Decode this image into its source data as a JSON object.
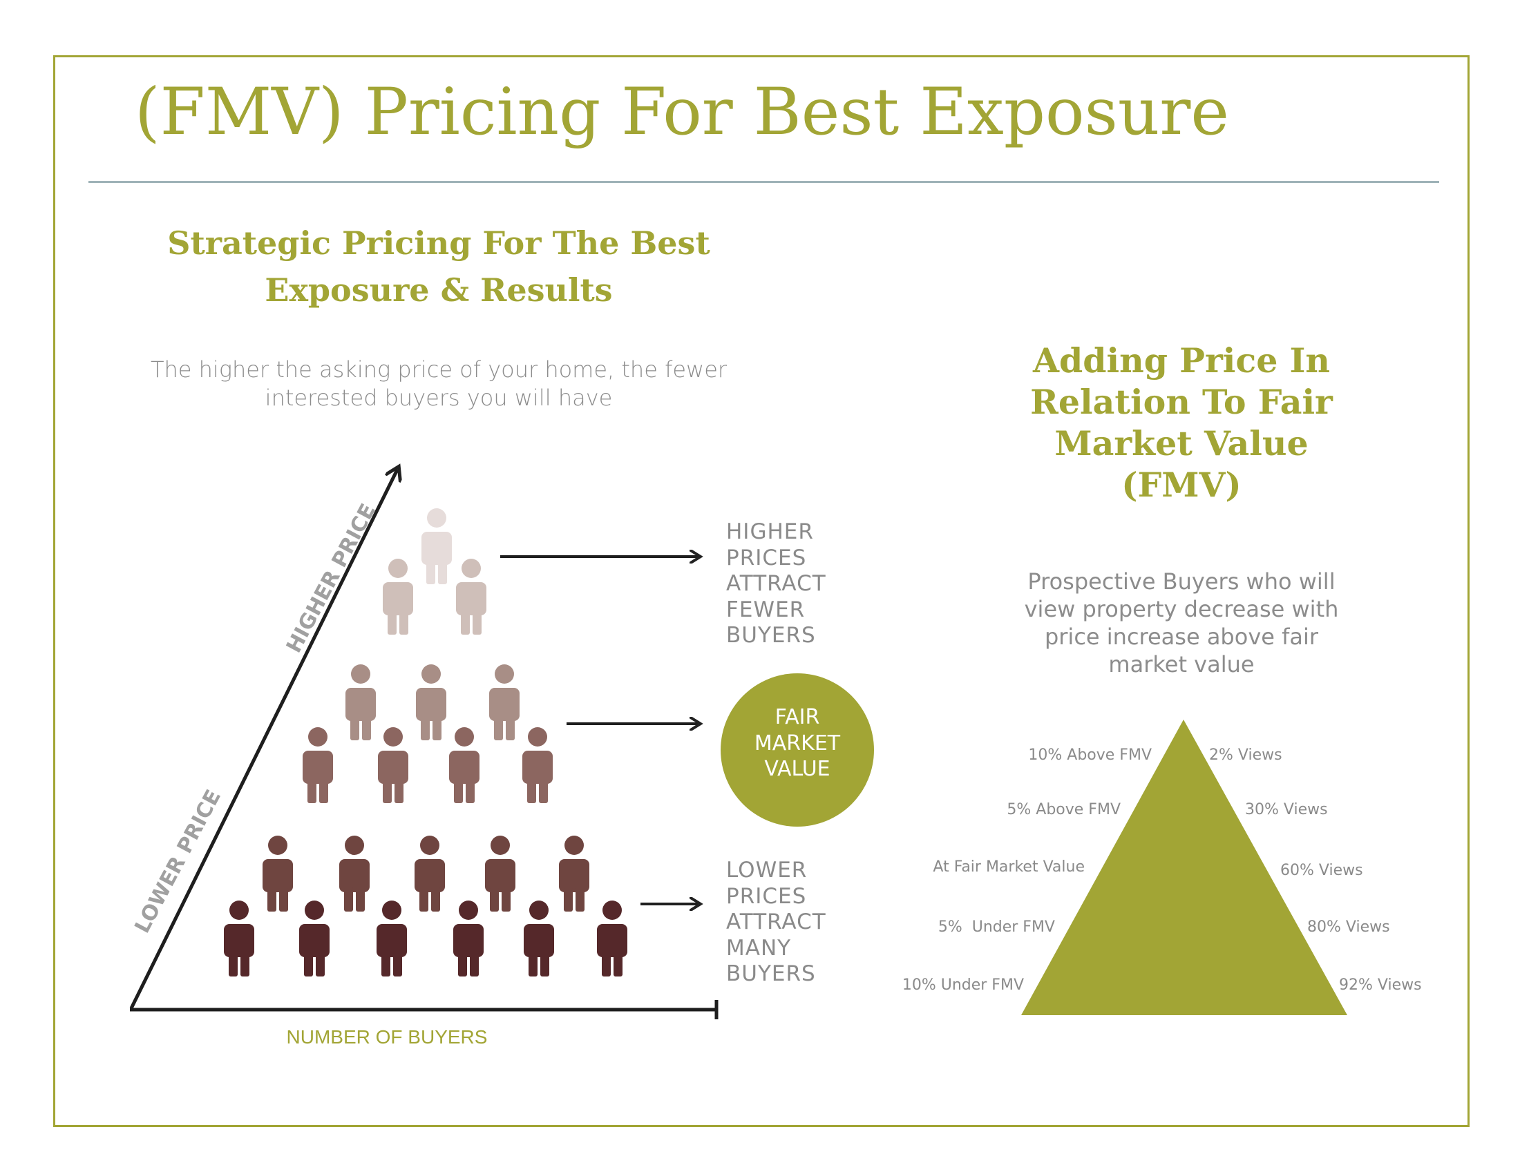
{
  "title": "(FMV) Pricing For Best Exposure",
  "left": {
    "heading_line1": "Strategic Pricing For The Best",
    "heading_line2": "Exposure & Results",
    "subtitle_line1": "The higher the asking price of your home, the fewer",
    "subtitle_line2": "interested buyers you will have",
    "higher_prices_label": "HIGHER\nPRICES\nATTRACT\nFEWER\nBUYERS",
    "fmv_circle_label": "FAIR\nMARKET\nVALUE",
    "lower_prices_label": "LOWER\nPRICES\nATTRACT\nMANY\nBUYERS",
    "x_axis_label": "NUMBER OF BUYERS",
    "axis_higher_label": "HIGHER PRICE",
    "axis_lower_label": "LOWER PRICE"
  },
  "right": {
    "heading_line1": "Adding Price In",
    "heading_line2": "Relation To Fair",
    "heading_line3": "Market Value",
    "heading_line4": "(FMV)",
    "subtitle_line1": "Prospective Buyers who will",
    "subtitle_line2": "view property decrease with",
    "subtitle_line3": "price increase above fair",
    "subtitle_line4": "market value",
    "levels": [
      {
        "price": "10% Above FMV",
        "views": "2% Views"
      },
      {
        "price": "5% Above FMV",
        "views": "30% Views"
      },
      {
        "price": "At Fair Market Value",
        "views": "60% Views"
      },
      {
        "price": "5%  Under FMV",
        "views": "80% Views"
      },
      {
        "price": "10% Under FMV",
        "views": "92% Views"
      }
    ]
  },
  "colors": {
    "accent": "#a2a535",
    "people_top": [
      "#e6dcda",
      "#cfbfb9"
    ],
    "people_mid": [
      "#a88e86",
      "#8c6660"
    ],
    "people_bottom": [
      "#6f4540",
      "#55282a"
    ]
  }
}
